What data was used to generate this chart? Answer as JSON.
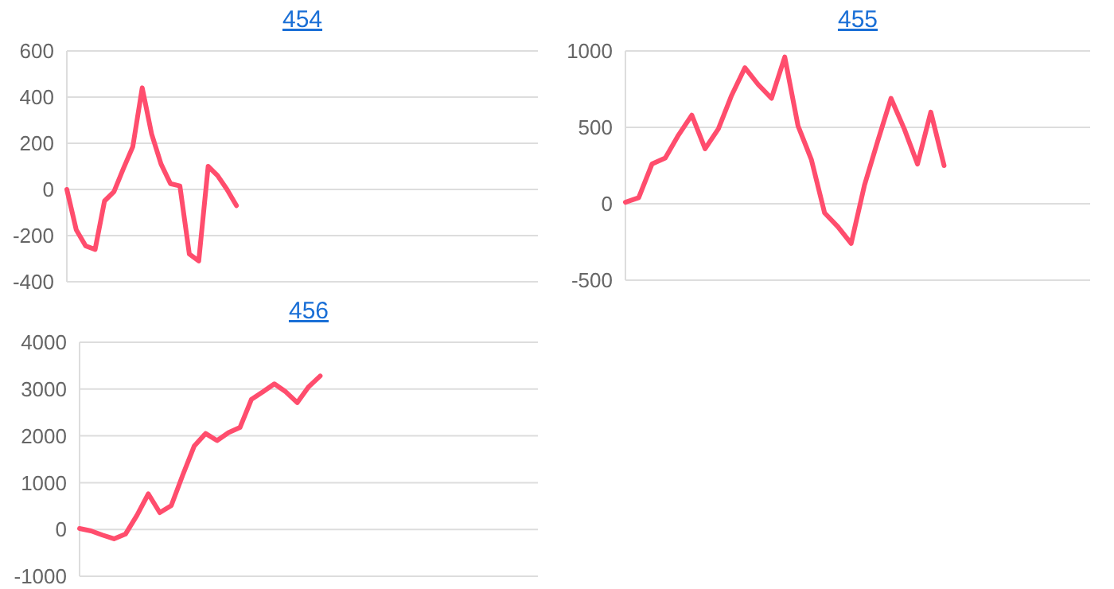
{
  "chart_data": [
    {
      "type": "line",
      "title": "454",
      "categories": [
        null,
        null,
        null,
        null,
        null,
        null,
        null,
        null,
        null,
        null,
        null,
        null,
        null,
        null,
        null,
        null,
        null,
        null,
        null,
        null,
        null,
        null,
        null,
        null,
        null,
        null,
        null,
        null,
        null,
        null,
        null,
        null,
        null,
        null,
        null,
        null,
        null,
        null,
        null,
        null,
        null,
        null,
        null,
        null,
        null,
        null,
        null,
        null,
        null,
        null,
        null
      ],
      "series": [
        {
          "color": "#ff4d6d",
          "values": [
            0,
            -175,
            -245,
            -260,
            -50,
            -10,
            90,
            185,
            440,
            240,
            110,
            25,
            15,
            -280,
            -310,
            100,
            60,
            0,
            -70,
            null,
            null,
            null,
            null,
            null,
            null,
            null,
            null,
            null,
            null,
            null,
            null,
            null,
            null,
            null,
            null,
            null,
            null,
            null,
            null,
            null,
            null,
            null,
            null,
            null,
            null,
            null,
            null,
            null,
            null,
            null,
            null
          ]
        }
      ],
      "ylim": [
        -400,
        600
      ],
      "yticks": [
        -400,
        -200,
        0,
        200,
        400,
        600
      ],
      "grid": "y",
      "marker": "none",
      "line_style": "solid",
      "tick_labels": "y"
    },
    {
      "type": "line",
      "title": "455",
      "categories": [
        null,
        null,
        null,
        null,
        null,
        null,
        null,
        null,
        null,
        null,
        null,
        null,
        null,
        null,
        null,
        null,
        null,
        null,
        null,
        null,
        null,
        null,
        null,
        null,
        null,
        null,
        null,
        null,
        null,
        null,
        null,
        null,
        null,
        null,
        null,
        null
      ],
      "series": [
        {
          "color": "#ff4d6d",
          "values": [
            10,
            40,
            260,
            300,
            450,
            580,
            360,
            490,
            710,
            890,
            780,
            690,
            960,
            510,
            290,
            -60,
            -150,
            -260,
            120,
            410,
            690,
            490,
            260,
            600,
            250,
            null,
            null,
            null,
            null,
            null,
            null,
            null,
            null,
            null,
            null,
            null
          ]
        }
      ],
      "ylim": [
        -500,
        1000
      ],
      "yticks": [
        -500,
        0,
        500,
        1000
      ],
      "grid": "y",
      "marker": "none",
      "line_style": "solid",
      "tick_labels": "y"
    },
    {
      "type": "line",
      "title": "456",
      "categories": [
        null,
        null,
        null,
        null,
        null,
        null,
        null,
        null,
        null,
        null,
        null,
        null,
        null,
        null,
        null,
        null,
        null,
        null,
        null,
        null,
        null,
        null,
        null,
        null,
        null,
        null,
        null,
        null,
        null,
        null,
        null,
        null,
        null,
        null,
        null,
        null,
        null,
        null,
        null,
        null,
        null
      ],
      "series": [
        {
          "color": "#ff4d6d",
          "values": [
            20,
            -30,
            -120,
            -200,
            -100,
            300,
            760,
            360,
            510,
            1160,
            1780,
            2050,
            1900,
            2070,
            2180,
            2780,
            2940,
            3110,
            2940,
            2710,
            3050,
            3280,
            null,
            null,
            null,
            null,
            null,
            null,
            null,
            null,
            null,
            null,
            null,
            null,
            null,
            null,
            null,
            null,
            null,
            null,
            null
          ]
        }
      ],
      "ylim": [
        -1000,
        4000
      ],
      "yticks": [
        -1000,
        0,
        1000,
        2000,
        3000,
        4000
      ],
      "grid": "y",
      "marker": "none",
      "line_style": "solid",
      "tick_labels": "y"
    }
  ]
}
